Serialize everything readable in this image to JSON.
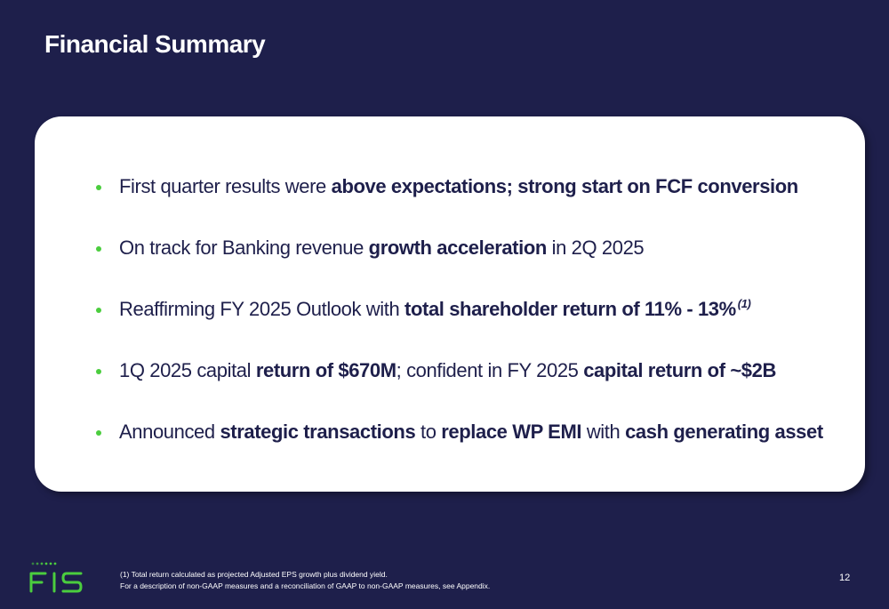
{
  "slide": {
    "title": "Financial Summary",
    "page_number": "12"
  },
  "bullets": [
    {
      "segments": [
        {
          "text": "First quarter results were ",
          "bold": false
        },
        {
          "text": "above expectations; strong start on FCF conversion",
          "bold": true
        }
      ]
    },
    {
      "segments": [
        {
          "text": "On track for Banking revenue ",
          "bold": false
        },
        {
          "text": "growth acceleration",
          "bold": true
        },
        {
          "text": " in 2Q 2025",
          "bold": false
        }
      ]
    },
    {
      "segments": [
        {
          "text": "Reaffirming FY 2025 Outlook with ",
          "bold": false
        },
        {
          "text": "total shareholder return of 11% - 13%",
          "bold": true
        }
      ],
      "superscript": "(1)"
    },
    {
      "segments": [
        {
          "text": "1Q 2025 capital ",
          "bold": false
        },
        {
          "text": "return of $670M",
          "bold": true
        },
        {
          "text": "; confident in FY 2025 ",
          "bold": false
        },
        {
          "text": "capital return of ~$2B",
          "bold": true
        }
      ]
    },
    {
      "segments": [
        {
          "text": "Announced ",
          "bold": false
        },
        {
          "text": "strategic transactions",
          "bold": true
        },
        {
          "text": " to ",
          "bold": false
        },
        {
          "text": "replace WP EMI",
          "bold": true
        },
        {
          "text": " with ",
          "bold": false
        },
        {
          "text": "cash generating asset",
          "bold": true
        }
      ]
    }
  ],
  "footnotes": {
    "line1": "(1) Total return calculated as projected Adjusted EPS growth plus dividend yield.",
    "line2": "For a description of non-GAAP measures and a reconciliation of GAAP to non-GAAP measures, see Appendix."
  },
  "logo": {
    "text": "FIS",
    "icon": "fis-logo-icon"
  },
  "colors": {
    "background": "#1e1f4b",
    "card": "#ffffff",
    "text_dark": "#1e1f4b",
    "accent_green": "#4bcd3e"
  }
}
